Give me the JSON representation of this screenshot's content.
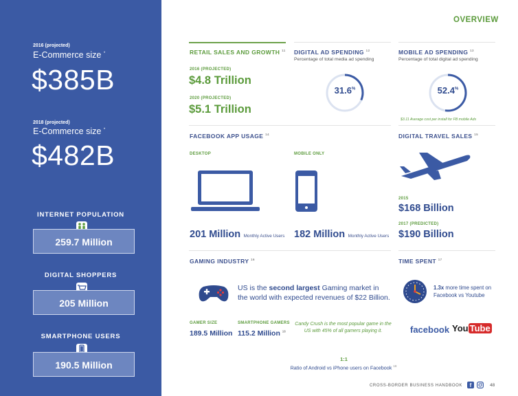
{
  "header": {
    "overview": "OVERVIEW"
  },
  "left": {
    "ecom2016": {
      "label_small": "2016 (projected)",
      "label": "E-Commerce size",
      "value": "$385B"
    },
    "ecom2018": {
      "label_small": "2018 (projected)",
      "label": "E-Commerce size",
      "value": "$482B"
    },
    "stats": [
      {
        "title": "INTERNET POPULATION",
        "value": "259.7 Million"
      },
      {
        "title": "DIGITAL SHOPPERS",
        "value": "205 Million"
      },
      {
        "title": "SMARTPHONE USERS",
        "value": "190.5 Million"
      }
    ]
  },
  "retail": {
    "title": "RETAIL SALES AND GROWTH",
    "l1": "2016 (PROJECTED)",
    "v1": "$4.8 Trillion",
    "l2": "2020 (PROJECTED)",
    "v2": "$5.1 Trillion"
  },
  "digital_ad": {
    "title": "DIGITAL AD SPENDING",
    "subtitle": "Percentage of total media ad spending",
    "value": "31.6",
    "fraction": 0.316
  },
  "mobile_ad": {
    "title": "MOBILE AD SPENDING",
    "subtitle": "Percentage of total digital ad spending",
    "value": "52.4",
    "fraction": 0.524,
    "note": "$3.11 Average cost per install for FB mobile Ads"
  },
  "fb_usage": {
    "title": "FACEBOOK APP USAGE",
    "desktop_label": "DESKTOP",
    "mobile_label": "MOBILE ONLY",
    "desktop_value": "201 Million",
    "mobile_value": "182 Million",
    "mau": "Monthly Active Users"
  },
  "travel": {
    "title": "DIGITAL TRAVEL SALES",
    "l1": "2015",
    "v1": "$168 Billion",
    "l2": "2017 (PREDICTED)",
    "v2": "$190 Billion"
  },
  "gaming": {
    "title": "GAMING INDUSTRY",
    "text_a": "US is the ",
    "text_bold": "second largest",
    "text_b": " Gaming market in the world with expected revenues of $22 Billion.",
    "gamer_label": "GAMER SIZE",
    "gamer_value": "189.5 Million",
    "phone_label": "SMARTPHONE GAMERS",
    "phone_value": "115.2 Million",
    "candy": "Candy Crush is the most popular game in the US with 45% of all gamers playing it."
  },
  "time_spent": {
    "title": "TIME SPENT",
    "bold": "1.3x",
    "text": " more time spent on Facebook vs Youtube",
    "facebook": "facebook",
    "you": "You",
    "tube": "Tube"
  },
  "ratio": {
    "value": "1:1",
    "text": "Ratio of Android vs iPhone users on Facebook"
  },
  "footer": {
    "text": "CROSS-BORDER BUSINESS HANDBOOK",
    "page": "48"
  },
  "colors": {
    "blue": "#3b5aa4",
    "green": "#5a9a3a",
    "navy": "#2f4a8e"
  }
}
